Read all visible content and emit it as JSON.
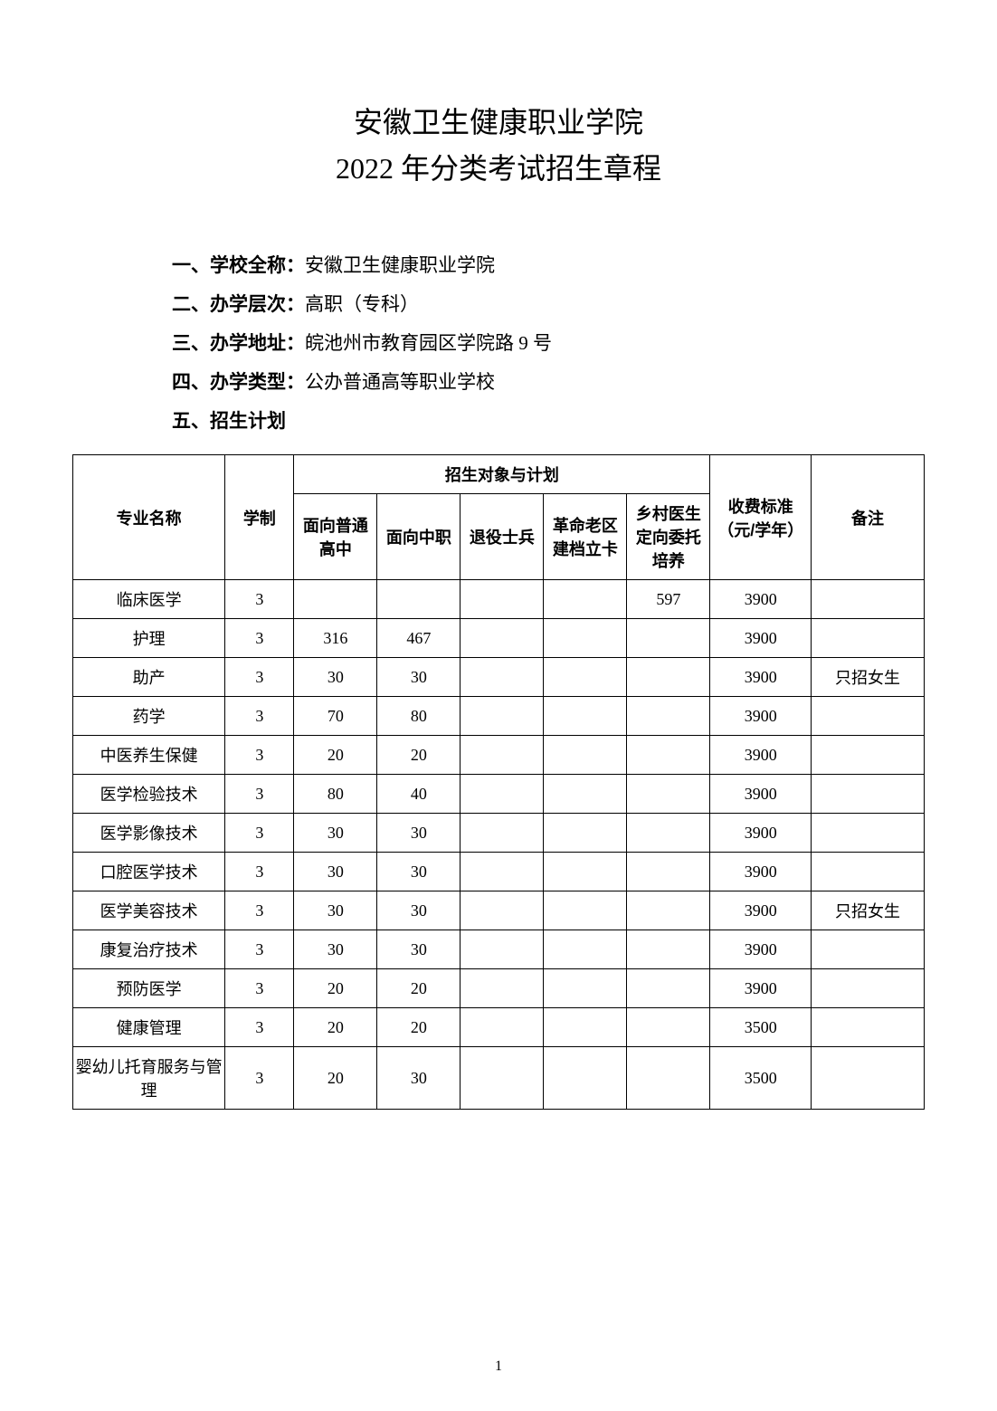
{
  "title": {
    "line1": "安徽卫生健康职业学院",
    "line2": "2022 年分类考试招生章程"
  },
  "info": [
    {
      "label": "一、学校全称：",
      "value": "安徽卫生健康职业学院"
    },
    {
      "label": "二、办学层次：",
      "value": "高职（专科）"
    },
    {
      "label": "三、办学地址：",
      "value": "皖池州市教育园区学院路 9 号"
    },
    {
      "label": "四、办学类型：",
      "value": "公办普通高等职业学校"
    },
    {
      "label": "五、招生计划",
      "value": ""
    }
  ],
  "table": {
    "headers": {
      "major": "专业名称",
      "xuezhi": "学制",
      "plan_group": "招生对象与计划",
      "plan1": "面向普通高中",
      "plan2": "面向中职",
      "plan3": "退役士兵",
      "plan4": "革命老区建档立卡",
      "plan5": "乡村医生定向委托培养",
      "fee": "收费标准（元/学年）",
      "remark": "备注"
    },
    "rows": [
      {
        "major": "临床医学",
        "xuezhi": "3",
        "p1": "",
        "p2": "",
        "p3": "",
        "p4": "",
        "p5": "597",
        "fee": "3900",
        "remark": ""
      },
      {
        "major": "护理",
        "xuezhi": "3",
        "p1": "316",
        "p2": "467",
        "p3": "",
        "p4": "",
        "p5": "",
        "fee": "3900",
        "remark": ""
      },
      {
        "major": "助产",
        "xuezhi": "3",
        "p1": "30",
        "p2": "30",
        "p3": "",
        "p4": "",
        "p5": "",
        "fee": "3900",
        "remark": "只招女生"
      },
      {
        "major": "药学",
        "xuezhi": "3",
        "p1": "70",
        "p2": "80",
        "p3": "",
        "p4": "",
        "p5": "",
        "fee": "3900",
        "remark": ""
      },
      {
        "major": "中医养生保健",
        "xuezhi": "3",
        "p1": "20",
        "p2": "20",
        "p3": "",
        "p4": "",
        "p5": "",
        "fee": "3900",
        "remark": ""
      },
      {
        "major": "医学检验技术",
        "xuezhi": "3",
        "p1": "80",
        "p2": "40",
        "p3": "",
        "p4": "",
        "p5": "",
        "fee": "3900",
        "remark": ""
      },
      {
        "major": "医学影像技术",
        "xuezhi": "3",
        "p1": "30",
        "p2": "30",
        "p3": "",
        "p4": "",
        "p5": "",
        "fee": "3900",
        "remark": ""
      },
      {
        "major": "口腔医学技术",
        "xuezhi": "3",
        "p1": "30",
        "p2": "30",
        "p3": "",
        "p4": "",
        "p5": "",
        "fee": "3900",
        "remark": ""
      },
      {
        "major": "医学美容技术",
        "xuezhi": "3",
        "p1": "30",
        "p2": "30",
        "p3": "",
        "p4": "",
        "p5": "",
        "fee": "3900",
        "remark": "只招女生"
      },
      {
        "major": "康复治疗技术",
        "xuezhi": "3",
        "p1": "30",
        "p2": "30",
        "p3": "",
        "p4": "",
        "p5": "",
        "fee": "3900",
        "remark": ""
      },
      {
        "major": "预防医学",
        "xuezhi": "3",
        "p1": "20",
        "p2": "20",
        "p3": "",
        "p4": "",
        "p5": "",
        "fee": "3900",
        "remark": ""
      },
      {
        "major": "健康管理",
        "xuezhi": "3",
        "p1": "20",
        "p2": "20",
        "p3": "",
        "p4": "",
        "p5": "",
        "fee": "3500",
        "remark": ""
      },
      {
        "major": "婴幼儿托育服务与管理",
        "xuezhi": "3",
        "p1": "20",
        "p2": "30",
        "p3": "",
        "p4": "",
        "p5": "",
        "fee": "3500",
        "remark": ""
      }
    ]
  },
  "page_number": "1"
}
